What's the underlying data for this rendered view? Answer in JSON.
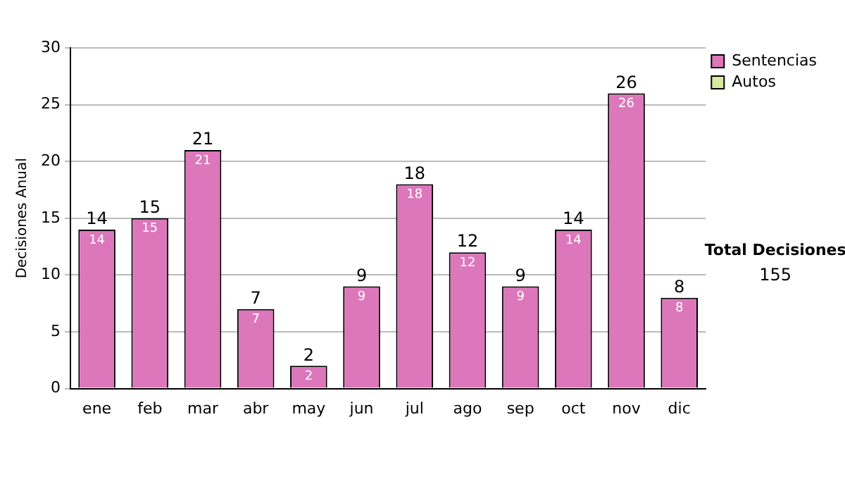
{
  "chart_data": {
    "type": "bar",
    "ylabel": "Decisiones Anual",
    "categories": [
      "ene",
      "feb",
      "mar",
      "abr",
      "may",
      "jun",
      "jul",
      "ago",
      "sep",
      "oct",
      "nov",
      "dic"
    ],
    "series": [
      {
        "name": "Sentencias",
        "color": "#dd77bb",
        "values": [
          14,
          15,
          21,
          7,
          2,
          9,
          18,
          12,
          9,
          14,
          26,
          8
        ],
        "value_labels": [
          "14",
          "15",
          "21",
          "7",
          "2",
          "9",
          "18",
          "12",
          "9",
          "14",
          "26",
          "8"
        ]
      },
      {
        "name": "Autos",
        "color": "#d8eaa0",
        "values": [
          0,
          0,
          0,
          0,
          0,
          0,
          0,
          0,
          0,
          0,
          0,
          0
        ],
        "value_labels": [
          null,
          null,
          null,
          null,
          null,
          null,
          null,
          null,
          null,
          null,
          null,
          null
        ]
      }
    ],
    "stacked": true,
    "totals": [
      "14",
      "15",
      "21",
      "7",
      "2",
      "9",
      "18",
      "12",
      "9",
      "14",
      "26",
      "8"
    ],
    "ylim": [
      0,
      30
    ],
    "yticks": [
      0,
      5,
      10,
      15,
      20,
      25,
      30
    ],
    "grid": "y",
    "legend": "right",
    "annotations": [
      "Total Decisiones",
      "155"
    ]
  }
}
